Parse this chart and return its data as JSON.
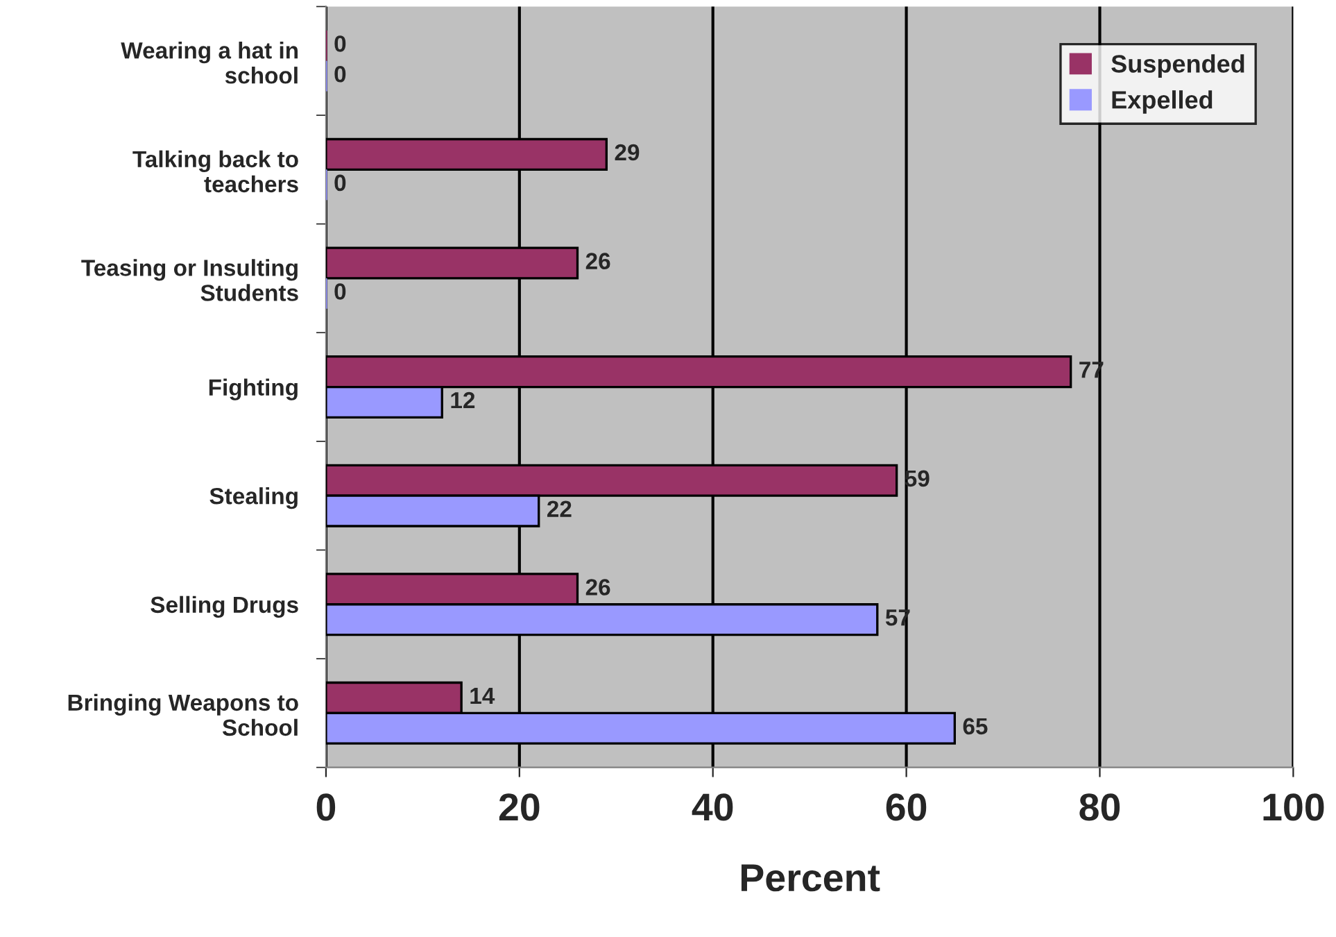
{
  "chart_data": {
    "type": "bar",
    "orientation": "horizontal",
    "xlabel": "Percent",
    "categories": [
      "Wearing a hat in\nschool",
      "Talking back to\nteachers",
      "Teasing or Insulting\nStudents",
      "Fighting",
      "Stealing",
      "Selling Drugs",
      "Bringing Weapons to\nSchool"
    ],
    "series": [
      {
        "name": "Suspended",
        "color": "#993366",
        "values": [
          0,
          29,
          26,
          77,
          59,
          26,
          14
        ]
      },
      {
        "name": "Expelled",
        "color": "#9999ff",
        "values": [
          0,
          0,
          0,
          12,
          22,
          57,
          65
        ]
      }
    ],
    "xlim": [
      0,
      100
    ],
    "xticks": [
      0,
      20,
      40,
      60,
      80,
      100
    ],
    "grid": "x",
    "legend": "top right",
    "data_labels": true
  }
}
